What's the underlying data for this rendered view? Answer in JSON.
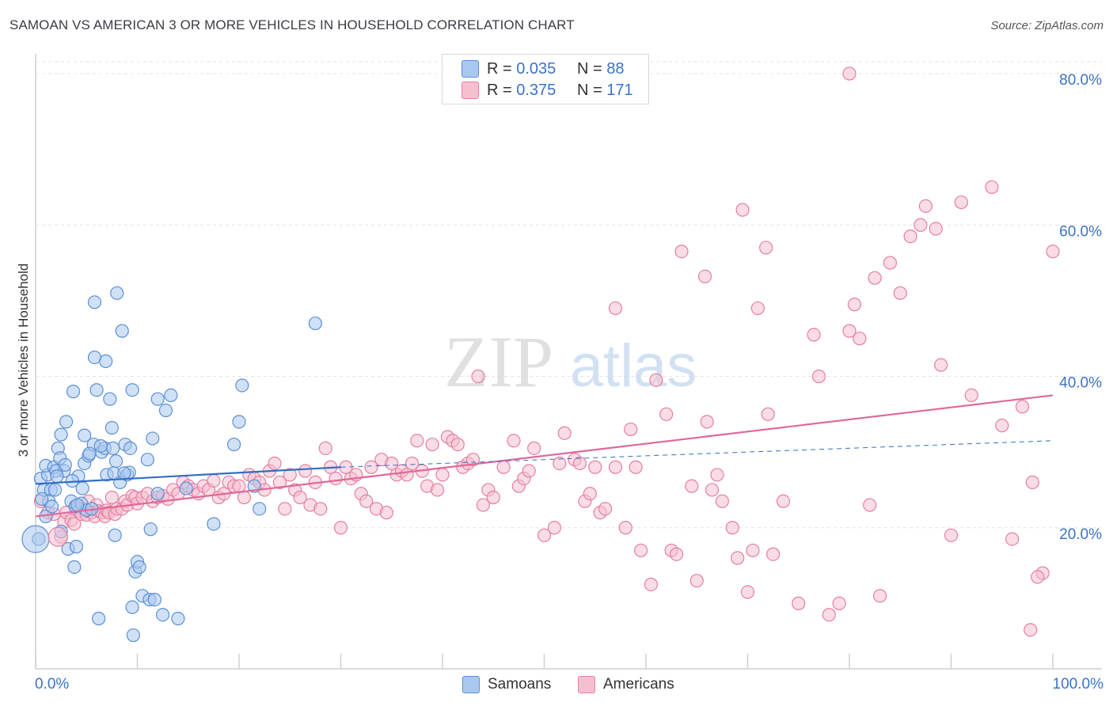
{
  "title": "SAMOAN VS AMERICAN 3 OR MORE VEHICLES IN HOUSEHOLD CORRELATION CHART",
  "source": "Source: ZipAtlas.com",
  "watermark": {
    "zip": "ZIP",
    "atlas": "atlas"
  },
  "colors": {
    "samoan_fill": "#a9c8ef",
    "samoan_stroke": "#5b8fd6",
    "samoan_line": "#2f6fc4",
    "american_fill": "#f6bfd0",
    "american_stroke": "#e47fa0",
    "american_line": "#e0679a",
    "axis_label": "#3b72c4",
    "grid": "#e3e3e3"
  },
  "legend_top": [
    {
      "r_label": "R =",
      "r_value": "0.035",
      "n_label": "N =",
      "n_value": "88"
    },
    {
      "r_label": "R =",
      "r_value": "0.375",
      "n_label": "N =",
      "n_value": "171"
    }
  ],
  "legend_bottom": [
    "Samoans",
    "Americans"
  ],
  "chart_data": {
    "type": "scatter",
    "title": "SAMOAN VS AMERICAN 3 OR MORE VEHICLES IN HOUSEHOLD CORRELATION CHART",
    "xlabel": "",
    "ylabel": "3 or more Vehicles in Household",
    "xlim": [
      0,
      100
    ],
    "ylim": [
      0,
      80
    ],
    "x_tick_labels": [
      "0.0%",
      "100.0%"
    ],
    "y_ticks": [
      20,
      40,
      60,
      80
    ],
    "y_tick_labels": [
      "20.0%",
      "40.0%",
      "60.0%",
      "80.0%"
    ],
    "grid": true,
    "legend_position": "top-center",
    "series": [
      {
        "name": "Samoans",
        "r": 0.035,
        "n": 88,
        "trend": {
          "x": [
            0,
            30
          ],
          "y": [
            25.8,
            28.0
          ],
          "dashed_to": [
            100,
            31.5
          ]
        },
        "points": [
          [
            0.5,
            26.5
          ],
          [
            0.8,
            25.0
          ],
          [
            1.2,
            27.0
          ],
          [
            1.0,
            28.2
          ],
          [
            1.5,
            25.0
          ],
          [
            1.8,
            28.0
          ],
          [
            1.3,
            23.5
          ],
          [
            0.6,
            23.8
          ],
          [
            1.0,
            21.5
          ],
          [
            0.3,
            18.5
          ],
          [
            2.2,
            30.5
          ],
          [
            2.5,
            32.3
          ],
          [
            2.4,
            29.2
          ],
          [
            2.8,
            27.5
          ],
          [
            3.0,
            34.0
          ],
          [
            2.0,
            27.5
          ],
          [
            3.2,
            17.2
          ],
          [
            2.5,
            19.5
          ],
          [
            3.5,
            23.5
          ],
          [
            3.8,
            14.8
          ],
          [
            3.9,
            22.8
          ],
          [
            4.0,
            17.5
          ],
          [
            3.7,
            38.0
          ],
          [
            4.2,
            26.8
          ],
          [
            4.5,
            23.2
          ],
          [
            4.6,
            25.2
          ],
          [
            4.8,
            28.5
          ],
          [
            4.8,
            32.2
          ],
          [
            5.0,
            22.3
          ],
          [
            5.2,
            29.5
          ],
          [
            5.5,
            22.5
          ],
          [
            5.7,
            31.0
          ],
          [
            5.8,
            49.8
          ],
          [
            5.8,
            42.5
          ],
          [
            6.0,
            38.2
          ],
          [
            6.2,
            8.0
          ],
          [
            6.5,
            30.0
          ],
          [
            6.8,
            30.5
          ],
          [
            6.9,
            42.0
          ],
          [
            7.0,
            27.0
          ],
          [
            7.3,
            37.0
          ],
          [
            7.5,
            33.2
          ],
          [
            7.6,
            30.5
          ],
          [
            7.8,
            19.0
          ],
          [
            7.9,
            28.8
          ],
          [
            8.0,
            51.0
          ],
          [
            8.3,
            26.0
          ],
          [
            8.5,
            46.0
          ],
          [
            8.8,
            31.0
          ],
          [
            9.0,
            27.0
          ],
          [
            9.2,
            27.3
          ],
          [
            9.3,
            30.5
          ],
          [
            9.5,
            9.5
          ],
          [
            9.5,
            38.2
          ],
          [
            9.6,
            5.8
          ],
          [
            9.8,
            14.2
          ],
          [
            10.0,
            15.5
          ],
          [
            10.2,
            14.8
          ],
          [
            10.5,
            11.0
          ],
          [
            11.0,
            29.0
          ],
          [
            11.2,
            10.5
          ],
          [
            11.3,
            19.8
          ],
          [
            11.5,
            31.8
          ],
          [
            11.7,
            10.5
          ],
          [
            12.0,
            24.5
          ],
          [
            12.0,
            37.0
          ],
          [
            12.5,
            8.5
          ],
          [
            12.8,
            35.5
          ],
          [
            13.3,
            37.5
          ],
          [
            14.0,
            8.0
          ],
          [
            14.8,
            25.2
          ],
          [
            17.5,
            20.5
          ],
          [
            19.5,
            31.0
          ],
          [
            20.0,
            34.0
          ],
          [
            20.3,
            38.8
          ],
          [
            21.5,
            25.5
          ],
          [
            22.0,
            22.5
          ],
          [
            27.5,
            47.0
          ],
          [
            1.9,
            25.0
          ],
          [
            2.9,
            28.3
          ],
          [
            4.1,
            23.0
          ],
          [
            5.3,
            29.8
          ],
          [
            6.4,
            30.8
          ],
          [
            7.7,
            27.2
          ],
          [
            3.6,
            26.2
          ],
          [
            2.1,
            26.8
          ],
          [
            1.6,
            22.8
          ],
          [
            8.7,
            27.2
          ]
        ]
      },
      {
        "name": "Americans",
        "r": 0.375,
        "n": 171,
        "trend": {
          "x": [
            0,
            100
          ],
          "y": [
            21.5,
            37.5
          ]
        },
        "points": [
          [
            0.5,
            23.5
          ],
          [
            1.2,
            22.0
          ],
          [
            1.8,
            21.8
          ],
          [
            2.5,
            18.8
          ],
          [
            2.8,
            20.8
          ],
          [
            3.0,
            22.0
          ],
          [
            3.5,
            21.0
          ],
          [
            3.8,
            20.5
          ],
          [
            4.0,
            22.5
          ],
          [
            4.2,
            22.2
          ],
          [
            4.5,
            21.8
          ],
          [
            4.8,
            22.5
          ],
          [
            5.0,
            21.7
          ],
          [
            5.2,
            23.5
          ],
          [
            5.5,
            22.0
          ],
          [
            5.8,
            21.5
          ],
          [
            6.0,
            23.0
          ],
          [
            6.2,
            22.2
          ],
          [
            6.5,
            22.0
          ],
          [
            6.8,
            21.5
          ],
          [
            7.0,
            22.3
          ],
          [
            7.2,
            22.0
          ],
          [
            7.5,
            24.0
          ],
          [
            7.8,
            21.8
          ],
          [
            8.0,
            22.5
          ],
          [
            8.5,
            22.5
          ],
          [
            8.8,
            23.5
          ],
          [
            9.0,
            23.0
          ],
          [
            9.5,
            24.2
          ],
          [
            9.8,
            24.0
          ],
          [
            10.0,
            23.2
          ],
          [
            10.5,
            24.0
          ],
          [
            11.0,
            24.5
          ],
          [
            11.5,
            23.5
          ],
          [
            12.0,
            24.0
          ],
          [
            12.5,
            24.2
          ],
          [
            13.0,
            23.8
          ],
          [
            13.5,
            25.0
          ],
          [
            14.0,
            24.5
          ],
          [
            14.5,
            26.0
          ],
          [
            15.0,
            25.5
          ],
          [
            15.5,
            25.0
          ],
          [
            16.0,
            24.5
          ],
          [
            16.5,
            25.5
          ],
          [
            17.0,
            25.0
          ],
          [
            17.5,
            26.2
          ],
          [
            18.0,
            24.0
          ],
          [
            18.5,
            24.5
          ],
          [
            19.0,
            26.0
          ],
          [
            19.5,
            25.5
          ],
          [
            20.0,
            25.5
          ],
          [
            20.5,
            24.0
          ],
          [
            21.0,
            27.0
          ],
          [
            21.5,
            26.5
          ],
          [
            22.0,
            26.0
          ],
          [
            22.5,
            25.0
          ],
          [
            23.0,
            27.5
          ],
          [
            23.5,
            28.5
          ],
          [
            24.0,
            26.0
          ],
          [
            24.5,
            22.5
          ],
          [
            25.0,
            27.0
          ],
          [
            25.5,
            25.0
          ],
          [
            26.0,
            24.0
          ],
          [
            26.5,
            27.5
          ],
          [
            27.0,
            23.0
          ],
          [
            27.5,
            26.0
          ],
          [
            28.0,
            22.5
          ],
          [
            28.5,
            30.5
          ],
          [
            29.0,
            28.0
          ],
          [
            29.5,
            26.5
          ],
          [
            30.0,
            20.0
          ],
          [
            30.5,
            28.0
          ],
          [
            31.0,
            26.5
          ],
          [
            31.5,
            27.0
          ],
          [
            32.0,
            24.5
          ],
          [
            32.5,
            23.5
          ],
          [
            33.0,
            28.0
          ],
          [
            33.5,
            22.5
          ],
          [
            34.0,
            29.0
          ],
          [
            34.5,
            22.0
          ],
          [
            35.0,
            28.5
          ],
          [
            35.5,
            27.0
          ],
          [
            36.0,
            27.5
          ],
          [
            36.5,
            27.0
          ],
          [
            37.0,
            28.5
          ],
          [
            37.5,
            31.5
          ],
          [
            38.0,
            27.5
          ],
          [
            38.5,
            25.5
          ],
          [
            39.0,
            31.0
          ],
          [
            39.5,
            25.0
          ],
          [
            40.0,
            27.0
          ],
          [
            40.5,
            32.0
          ],
          [
            41.0,
            31.5
          ],
          [
            41.5,
            31.0
          ],
          [
            42.0,
            28.0
          ],
          [
            42.5,
            28.5
          ],
          [
            43.0,
            29.0
          ],
          [
            43.5,
            40.0
          ],
          [
            44.0,
            23.0
          ],
          [
            44.5,
            25.0
          ],
          [
            45.0,
            24.0
          ],
          [
            46.0,
            28.0
          ],
          [
            47.0,
            31.5
          ],
          [
            47.5,
            25.5
          ],
          [
            48.0,
            26.5
          ],
          [
            48.5,
            27.5
          ],
          [
            49.0,
            30.5
          ],
          [
            50.0,
            19.0
          ],
          [
            51.0,
            20.0
          ],
          [
            51.5,
            28.5
          ],
          [
            52.0,
            32.5
          ],
          [
            53.0,
            29.0
          ],
          [
            53.5,
            28.5
          ],
          [
            54.0,
            23.5
          ],
          [
            54.5,
            24.5
          ],
          [
            55.0,
            28.0
          ],
          [
            55.5,
            22.0
          ],
          [
            56.0,
            22.5
          ],
          [
            57.0,
            28.0
          ],
          [
            58.0,
            20.0
          ],
          [
            58.5,
            33.0
          ],
          [
            59.0,
            28.0
          ],
          [
            59.5,
            17.0
          ],
          [
            60.5,
            12.5
          ],
          [
            61.0,
            39.5
          ],
          [
            62.0,
            35.0
          ],
          [
            62.5,
            17.0
          ],
          [
            63.0,
            16.5
          ],
          [
            63.5,
            56.5
          ],
          [
            64.5,
            25.5
          ],
          [
            65.0,
            13.0
          ],
          [
            66.0,
            34.0
          ],
          [
            66.5,
            25.0
          ],
          [
            67.0,
            27.0
          ],
          [
            67.5,
            23.5
          ],
          [
            68.5,
            20.0
          ],
          [
            69.0,
            16.0
          ],
          [
            70.0,
            11.5
          ],
          [
            70.5,
            17.0
          ],
          [
            71.0,
            49.0
          ],
          [
            72.0,
            35.0
          ],
          [
            72.5,
            16.5
          ],
          [
            73.5,
            23.5
          ],
          [
            75.0,
            10.0
          ],
          [
            76.5,
            45.5
          ],
          [
            77.0,
            40.0
          ],
          [
            78.0,
            8.5
          ],
          [
            79.0,
            10.0
          ],
          [
            80.0,
            46.0
          ],
          [
            80.5,
            49.5
          ],
          [
            81.0,
            45.0
          ],
          [
            82.0,
            23.0
          ],
          [
            82.5,
            53.0
          ],
          [
            83.0,
            11.0
          ],
          [
            84.0,
            55.0
          ],
          [
            85.0,
            51.0
          ],
          [
            86.0,
            58.5
          ],
          [
            87.0,
            60.0
          ],
          [
            87.5,
            62.5
          ],
          [
            88.5,
            59.5
          ],
          [
            89.0,
            41.5
          ],
          [
            90.0,
            19.0
          ],
          [
            91.0,
            63.0
          ],
          [
            92.0,
            37.5
          ],
          [
            94.0,
            65.0
          ],
          [
            95.0,
            33.5
          ],
          [
            96.0,
            18.5
          ],
          [
            97.0,
            36.0
          ],
          [
            98.0,
            26.0
          ],
          [
            99.0,
            14.0
          ],
          [
            98.5,
            13.5
          ],
          [
            100.0,
            56.5
          ]
        ]
      }
    ],
    "extra_points": {
      "Americans": [
        [
          80.0,
          80.0
        ],
        [
          97.8,
          6.5
        ],
        [
          57.0,
          49.0
        ],
        [
          65.8,
          53.2
        ],
        [
          69.5,
          62.0
        ],
        [
          71.8,
          57.0
        ]
      ]
    }
  }
}
